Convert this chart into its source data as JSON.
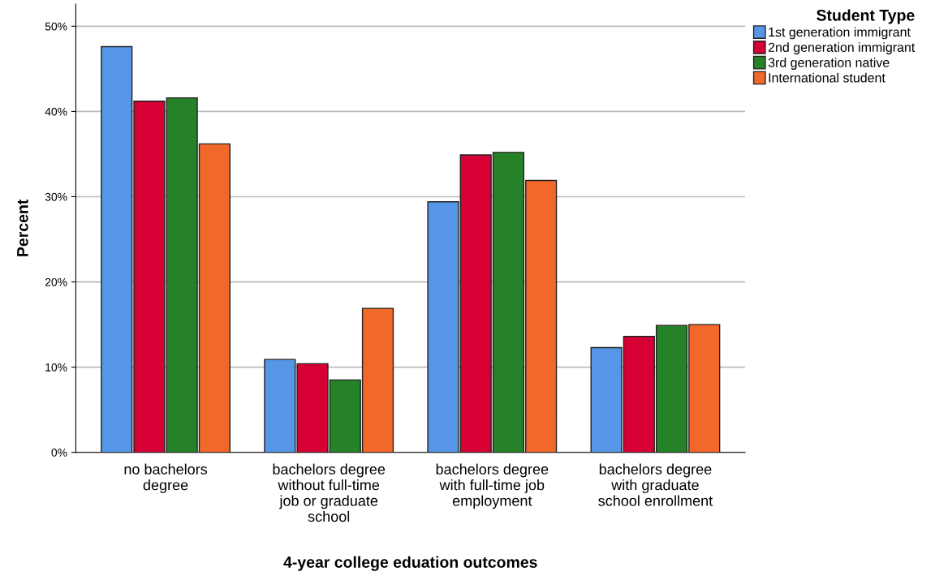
{
  "chart_data": {
    "type": "bar",
    "categories": [
      "no bachelors\ndegree",
      "bachelors degree\nwithout full-time\njob or graduate\nschool",
      "bachelors degree\nwith full-time job\nemployment",
      "bachelors degree\nwith graduate\nschool enrollment"
    ],
    "series": [
      {
        "name": "1st generation immigrant",
        "color": "#5596e6",
        "values": [
          47.6,
          10.9,
          29.4,
          12.3
        ]
      },
      {
        "name": "2nd generation immigrant",
        "color": "#d70034",
        "values": [
          41.2,
          10.4,
          34.9,
          13.6
        ]
      },
      {
        "name": "3rd generation native",
        "color": "#268229",
        "values": [
          41.6,
          8.5,
          35.2,
          14.9
        ]
      },
      {
        "name": "International student",
        "color": "#f2672a",
        "values": [
          36.2,
          16.9,
          31.9,
          15.0
        ]
      }
    ],
    "xlabel": "4-year college eduation outcomes",
    "ylabel": "Percent",
    "legend_title": "Student Type",
    "ylim": [
      0,
      52.6
    ],
    "yticks": [
      {
        "value": 0,
        "label": "0%"
      },
      {
        "value": 10,
        "label": "10%"
      },
      {
        "value": 20,
        "label": "20%"
      },
      {
        "value": 30,
        "label": "30%"
      },
      {
        "value": 40,
        "label": "40%"
      },
      {
        "value": 50,
        "label": "50%"
      }
    ],
    "grid": "y",
    "legend": "top right"
  }
}
